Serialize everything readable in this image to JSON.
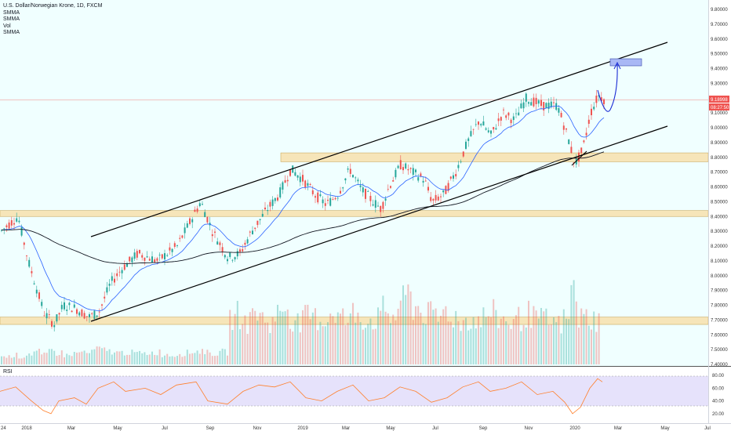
{
  "legend": {
    "title": "U.S. Dollar/Norwegian Krone, 1D, FXCM",
    "lines": [
      "SMMA",
      "SMMA",
      "Vol",
      "SMMA"
    ]
  },
  "rsi_label": "RSI",
  "colors": {
    "price_background": "#f0ffff",
    "zone_fill": "#f7e3b2",
    "zone_border": "#c9a24f",
    "up_candle": "#26a69a",
    "down_candle": "#ef5350",
    "smma_fast": "#2962ff",
    "smma_slow": "#131722",
    "rsi_line": "#ff7f2a",
    "rsi_band": "#e6e2fb",
    "target_box": "#a9b8f5",
    "projection": "#1a2bd4"
  },
  "chart_data": {
    "type": "candlestick",
    "title": "U.S. Dollar/Norwegian Krone, 1D, FXCM",
    "price_axis_ticks": [
      "9.80000",
      "9.70000",
      "9.60000",
      "9.50000",
      "9.40000",
      "9.30000",
      "9.20000",
      "9.10000",
      "9.00000",
      "8.90000",
      "8.80000",
      "8.70000",
      "8.60000",
      "8.50000",
      "8.40000",
      "8.30000",
      "8.20000",
      "8.10000",
      "8.00000",
      "7.90000",
      "7.80000",
      "7.70000",
      "7.60000",
      "7.50000",
      "7.40000"
    ],
    "ylim": [
      7.4,
      9.85
    ],
    "time_axis_ticks": [
      "24",
      "2018",
      "Mar",
      "May",
      "Jul",
      "Sep",
      "Nov",
      "2019",
      "Mar",
      "May",
      "Jul",
      "Sep",
      "Nov",
      "2020",
      "Mar",
      "May",
      "Jul"
    ],
    "last_price": "9.18998",
    "countdown": "08:27:50",
    "price_path": [
      [
        0,
        8.3
      ],
      [
        22,
        8.4
      ],
      [
        35,
        8.1
      ],
      [
        55,
        7.75
      ],
      [
        68,
        7.67
      ],
      [
        80,
        7.8
      ],
      [
        95,
        7.78
      ],
      [
        112,
        7.72
      ],
      [
        125,
        7.75
      ],
      [
        140,
        7.95
      ],
      [
        155,
        8.05
      ],
      [
        175,
        8.15
      ],
      [
        200,
        8.1
      ],
      [
        225,
        8.2
      ],
      [
        245,
        8.4
      ],
      [
        255,
        8.5
      ],
      [
        270,
        8.3
      ],
      [
        290,
        8.12
      ],
      [
        305,
        8.15
      ],
      [
        320,
        8.3
      ],
      [
        340,
        8.45
      ],
      [
        355,
        8.55
      ],
      [
        370,
        8.72
      ],
      [
        385,
        8.65
      ],
      [
        400,
        8.55
      ],
      [
        415,
        8.48
      ],
      [
        430,
        8.55
      ],
      [
        445,
        8.72
      ],
      [
        460,
        8.58
      ],
      [
        475,
        8.5
      ],
      [
        485,
        8.45
      ],
      [
        495,
        8.6
      ],
      [
        510,
        8.75
      ],
      [
        525,
        8.7
      ],
      [
        540,
        8.65
      ],
      [
        550,
        8.5
      ],
      [
        565,
        8.55
      ],
      [
        580,
        8.7
      ],
      [
        595,
        8.9
      ],
      [
        610,
        9.05
      ],
      [
        625,
        8.95
      ],
      [
        640,
        9.1
      ],
      [
        655,
        9.05
      ],
      [
        670,
        9.2
      ],
      [
        690,
        9.15
      ],
      [
        710,
        9.15
      ],
      [
        725,
        8.9
      ],
      [
        732,
        8.75
      ],
      [
        742,
        8.85
      ],
      [
        752,
        9.1
      ],
      [
        762,
        9.22
      ],
      [
        770,
        9.19
      ]
    ],
    "support_resistance_zones": [
      {
        "from": 8.77,
        "to": 8.83,
        "start_date": "Nov 2018"
      },
      {
        "from": 8.4,
        "to": 8.44,
        "start_date": "2018"
      },
      {
        "from": 7.67,
        "to": 7.72,
        "start_date": "2018"
      }
    ],
    "channel_lines": [
      {
        "name": "upper",
        "from": {
          "date": "Apr 2018",
          "price": 8.32
        },
        "to": {
          "date": "Apr 2020",
          "price": 9.58
        }
      },
      {
        "name": "lower",
        "from": {
          "date": "Apr 2018",
          "price": 7.71
        },
        "to": {
          "date": "Apr 2020",
          "price": 9.0
        }
      }
    ],
    "target_zone": {
      "from": 9.44,
      "to": 9.48,
      "date_range": [
        "Feb 2020",
        "Mar 2020"
      ]
    },
    "rsi": {
      "ylim": [
        10,
        90
      ],
      "ticks": [
        "80.00",
        "60.00",
        "40.00",
        "20.00"
      ],
      "band": [
        30,
        70
      ],
      "path": [
        [
          0,
          55
        ],
        [
          20,
          62
        ],
        [
          40,
          40
        ],
        [
          55,
          25
        ],
        [
          65,
          20
        ],
        [
          75,
          40
        ],
        [
          95,
          45
        ],
        [
          110,
          35
        ],
        [
          125,
          60
        ],
        [
          145,
          70
        ],
        [
          160,
          55
        ],
        [
          185,
          60
        ],
        [
          205,
          50
        ],
        [
          225,
          65
        ],
        [
          250,
          70
        ],
        [
          265,
          40
        ],
        [
          290,
          35
        ],
        [
          310,
          55
        ],
        [
          330,
          65
        ],
        [
          350,
          62
        ],
        [
          370,
          70
        ],
        [
          390,
          45
        ],
        [
          410,
          40
        ],
        [
          430,
          55
        ],
        [
          450,
          65
        ],
        [
          470,
          40
        ],
        [
          490,
          45
        ],
        [
          510,
          62
        ],
        [
          530,
          55
        ],
        [
          550,
          38
        ],
        [
          570,
          45
        ],
        [
          590,
          62
        ],
        [
          610,
          70
        ],
        [
          625,
          55
        ],
        [
          645,
          60
        ],
        [
          665,
          70
        ],
        [
          685,
          50
        ],
        [
          705,
          55
        ],
        [
          720,
          38
        ],
        [
          730,
          20
        ],
        [
          740,
          30
        ],
        [
          752,
          60
        ],
        [
          762,
          75
        ],
        [
          768,
          70
        ]
      ]
    },
    "volume": {
      "max_height_note": "relative bars",
      "levels": [
        0.1,
        0.12,
        0.1,
        0.14,
        0.16,
        0.12,
        0.18,
        0.15,
        0.12,
        0.14,
        0.16,
        0.15,
        0.2,
        0.18,
        0.17,
        0.15,
        0.16,
        0.15,
        0.14,
        0.15,
        0.16,
        0.13,
        0.12,
        0.14,
        0.15,
        0.17,
        0.18,
        0.15,
        0.14,
        0.16,
        0.6,
        0.65,
        0.55,
        0.7,
        0.6,
        0.55,
        0.65,
        0.75,
        0.6,
        0.55,
        0.62,
        0.6,
        0.58,
        0.7,
        0.62,
        0.56,
        0.68,
        0.6,
        0.58,
        0.6,
        0.7,
        0.62,
        0.8,
        0.9,
        0.75,
        0.68,
        0.64,
        0.6,
        0.7,
        0.62,
        0.55,
        0.6,
        0.58,
        0.62,
        0.66,
        0.6,
        0.58,
        0.55,
        0.6,
        0.65,
        0.6,
        0.58,
        0.55,
        0.52,
        0.58,
        0.95,
        0.6,
        0.62,
        0.58,
        0.5
      ]
    }
  }
}
